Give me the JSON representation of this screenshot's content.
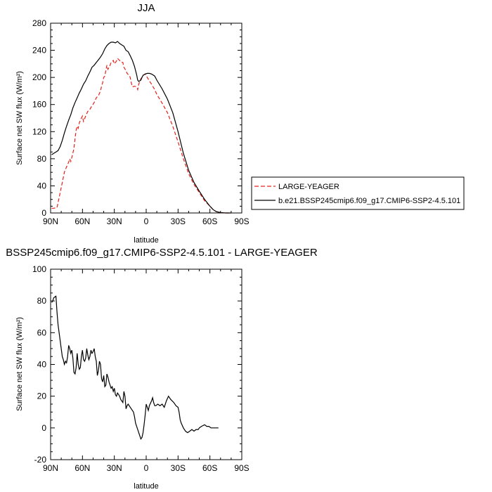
{
  "chart_data": [
    {
      "type": "line",
      "title": "JJA",
      "xlabel": "latitude",
      "ylabel": "Surface net SW flux (W/m²)",
      "xlim": [
        90,
        -90
      ],
      "ylim": [
        0,
        280
      ],
      "x_ticks": [
        90,
        60,
        30,
        0,
        -30,
        -60,
        -90
      ],
      "x_tick_labels": [
        "90N",
        "60N",
        "30N",
        "0",
        "30S",
        "60S",
        "90S"
      ],
      "y_ticks": [
        0,
        40,
        80,
        120,
        160,
        200,
        240,
        280
      ],
      "y_tick_labels": [
        "0",
        "40",
        "80",
        "120",
        "160",
        "200",
        "240",
        "280"
      ],
      "legend": "right-outside",
      "series": [
        {
          "name": "LARGE-YEAGER",
          "color": "#e8201a",
          "dash": "dashed",
          "points": [
            [
              89,
              7
            ],
            [
              87,
              7
            ],
            [
              84,
              8
            ],
            [
              83,
              15
            ],
            [
              81,
              30
            ],
            [
              79,
              45
            ],
            [
              77,
              60
            ],
            [
              75,
              68
            ],
            [
              73,
              75
            ],
            [
              72,
              80
            ],
            [
              71,
              76
            ],
            [
              70,
              82
            ],
            [
              68,
              95
            ],
            [
              67,
              110
            ],
            [
              66,
              122
            ],
            [
              65,
              128
            ],
            [
              64,
              125
            ],
            [
              63,
              133
            ],
            [
              61,
              140
            ],
            [
              60,
              143
            ],
            [
              59,
              135
            ],
            [
              57,
              143
            ],
            [
              55,
              150
            ],
            [
              53,
              153
            ],
            [
              51,
              158
            ],
            [
              49,
              163
            ],
            [
              47,
              170
            ],
            [
              45,
              173
            ],
            [
              43,
              180
            ],
            [
              42,
              187
            ],
            [
              41,
              192
            ],
            [
              40,
              200
            ],
            [
              39,
              202
            ],
            [
              38,
              210
            ],
            [
              37,
              218
            ],
            [
              36,
              212
            ],
            [
              34,
              218
            ],
            [
              33,
              222
            ],
            [
              31,
              225
            ],
            [
              30,
              220
            ],
            [
              28,
              224
            ],
            [
              27,
              228
            ],
            [
              25,
              225
            ],
            [
              24,
              223
            ],
            [
              22,
              222
            ],
            [
              21,
              215
            ],
            [
              19,
              210
            ],
            [
              18,
              206
            ],
            [
              16,
              203
            ],
            [
              15,
              200
            ],
            [
              14,
              192
            ],
            [
              13,
              186
            ],
            [
              11,
              187
            ],
            [
              9,
              186
            ],
            [
              8,
              182
            ],
            [
              7,
              190
            ],
            [
              5,
              198
            ],
            [
              4,
              200
            ],
            [
              3,
              203
            ],
            [
              1,
              205
            ],
            [
              0,
              203
            ],
            [
              -1,
              200
            ],
            [
              -3,
              195
            ],
            [
              -5,
              190
            ],
            [
              -8,
              182
            ],
            [
              -10,
              175
            ],
            [
              -15,
              162
            ],
            [
              -20,
              148
            ],
            [
              -25,
              128
            ],
            [
              -30,
              105
            ],
            [
              -35,
              80
            ],
            [
              -40,
              58
            ],
            [
              -45,
              42
            ],
            [
              -50,
              30
            ],
            [
              -55,
              18
            ],
            [
              -60,
              10
            ],
            [
              -63,
              5
            ],
            [
              -66,
              2
            ],
            [
              -70,
              0.5
            ],
            [
              -75,
              0
            ],
            [
              -80,
              0
            ]
          ]
        },
        {
          "name": "b.e21.BSSP245cmip6.f09_g17.CMIP6-SSP2-4.5.101",
          "color": "#000000",
          "dash": "solid",
          "points": [
            [
              89,
              86
            ],
            [
              87,
              88
            ],
            [
              85,
              90
            ],
            [
              83,
              92
            ],
            [
              81,
              98
            ],
            [
              79,
              107
            ],
            [
              77,
              118
            ],
            [
              75,
              128
            ],
            [
              73,
              137
            ],
            [
              71,
              145
            ],
            [
              69,
              155
            ],
            [
              67,
              163
            ],
            [
              65,
              170
            ],
            [
              63,
              177
            ],
            [
              61,
              183
            ],
            [
              59,
              190
            ],
            [
              57,
              195
            ],
            [
              55,
              202
            ],
            [
              53,
              208
            ],
            [
              51,
              215
            ],
            [
              49,
              218
            ],
            [
              47,
              222
            ],
            [
              45,
              226
            ],
            [
              43,
              230
            ],
            [
              41,
              235
            ],
            [
              39,
              242
            ],
            [
              37,
              247
            ],
            [
              35,
              250
            ],
            [
              33,
              252
            ],
            [
              31,
              252
            ],
            [
              29,
              251
            ],
            [
              27,
              253
            ],
            [
              25,
              250
            ],
            [
              23,
              248
            ],
            [
              21,
              246
            ],
            [
              19,
              240
            ],
            [
              17,
              238
            ],
            [
              15,
              232
            ],
            [
              13,
              225
            ],
            [
              11,
              216
            ],
            [
              10,
              210
            ],
            [
              9,
              204
            ],
            [
              8,
              196
            ],
            [
              7,
              194
            ],
            [
              6,
              195
            ],
            [
              5,
              196
            ],
            [
              4,
              200
            ],
            [
              3,
              203
            ],
            [
              1,
              205
            ],
            [
              -1,
              206
            ],
            [
              -3,
              206
            ],
            [
              -5,
              205
            ],
            [
              -8,
              202
            ],
            [
              -10,
              196
            ],
            [
              -15,
              183
            ],
            [
              -20,
              168
            ],
            [
              -25,
              148
            ],
            [
              -30,
              120
            ],
            [
              -35,
              88
            ],
            [
              -40,
              63
            ],
            [
              -45,
              45
            ],
            [
              -50,
              32
            ],
            [
              -55,
              20
            ],
            [
              -60,
              10
            ],
            [
              -63,
              5
            ],
            [
              -66,
              2
            ],
            [
              -70,
              0.5
            ],
            [
              -75,
              0
            ],
            [
              -80,
              0
            ]
          ]
        }
      ]
    },
    {
      "type": "line",
      "title": "BSSP245cmip6.f09_g17.CMIP6-SSP2-4.5.101 - LARGE-YEAGER",
      "xlabel": "latitude",
      "ylabel": "Surface net SW flux (W/m²)",
      "xlim": [
        90,
        -90
      ],
      "ylim": [
        -20,
        100
      ],
      "x_ticks": [
        90,
        60,
        30,
        0,
        -30,
        -60,
        -90
      ],
      "x_tick_labels": [
        "90N",
        "60N",
        "30N",
        "0",
        "30S",
        "60S",
        "90S"
      ],
      "y_ticks": [
        -20,
        0,
        20,
        40,
        60,
        80,
        100
      ],
      "y_tick_labels": [
        "-20",
        "0",
        "20",
        "40",
        "60",
        "80",
        "100"
      ],
      "series": [
        {
          "color": "#000000",
          "dash": "solid",
          "points": [
            [
              89,
              79
            ],
            [
              88,
              80
            ],
            [
              87,
              82
            ],
            [
              85,
              83
            ],
            [
              84,
              73
            ],
            [
              83,
              65
            ],
            [
              81,
              55
            ],
            [
              80,
              50
            ],
            [
              79,
              45
            ],
            [
              78,
              43
            ],
            [
              77,
              40
            ],
            [
              76,
              42
            ],
            [
              75,
              41
            ],
            [
              74,
              45
            ],
            [
              73,
              52
            ],
            [
              72,
              50
            ],
            [
              71,
              47
            ],
            [
              70,
              49
            ],
            [
              69,
              44
            ],
            [
              68,
              35
            ],
            [
              67,
              34
            ],
            [
              66,
              38
            ],
            [
              65,
              47
            ],
            [
              64,
              40
            ],
            [
              63,
              37
            ],
            [
              62,
              38
            ],
            [
              61,
              45
            ],
            [
              60,
              49
            ],
            [
              59,
              43
            ],
            [
              58,
              42
            ],
            [
              57,
              44
            ],
            [
              56,
              50
            ],
            [
              55,
              46
            ],
            [
              54,
              43
            ],
            [
              53,
              45
            ],
            [
              52,
              49
            ],
            [
              51,
              47
            ],
            [
              50,
              48
            ],
            [
              49,
              50
            ],
            [
              48,
              45
            ],
            [
              47,
              42
            ],
            [
              46,
              33
            ],
            [
              45,
              36
            ],
            [
              44,
              42
            ],
            [
              43,
              40
            ],
            [
              42,
              31
            ],
            [
              41,
              29
            ],
            [
              40,
              33
            ],
            [
              39,
              26
            ],
            [
              38,
              27
            ],
            [
              37,
              34
            ],
            [
              36,
              32
            ],
            [
              35,
              29
            ],
            [
              34,
              27
            ],
            [
              33,
              25
            ],
            [
              32,
              26
            ],
            [
              31,
              23
            ],
            [
              30,
              25
            ],
            [
              29,
              21
            ],
            [
              28,
              20
            ],
            [
              27,
              22
            ],
            [
              25,
              20
            ],
            [
              24,
              18
            ],
            [
              22,
              16
            ],
            [
              21,
              23
            ],
            [
              20,
              20
            ],
            [
              19,
              12
            ],
            [
              18,
              14
            ],
            [
              17,
              15
            ],
            [
              16,
              14
            ],
            [
              14,
              12
            ],
            [
              12,
              10
            ],
            [
              11,
              7
            ],
            [
              10,
              3
            ],
            [
              9,
              1
            ],
            [
              8,
              -1
            ],
            [
              7,
              -3
            ],
            [
              6,
              -5
            ],
            [
              5,
              -7
            ],
            [
              4,
              -6
            ],
            [
              3,
              -3
            ],
            [
              2,
              2
            ],
            [
              1,
              8
            ],
            [
              0,
              15
            ],
            [
              -1,
              13
            ],
            [
              -2,
              11
            ],
            [
              -3,
              14
            ],
            [
              -5,
              17
            ],
            [
              -6,
              19
            ],
            [
              -7,
              16
            ],
            [
              -8,
              14
            ],
            [
              -9,
              14
            ],
            [
              -11,
              15
            ],
            [
              -13,
              14
            ],
            [
              -15,
              15
            ],
            [
              -17,
              13
            ],
            [
              -19,
              17
            ],
            [
              -21,
              20
            ],
            [
              -23,
              18
            ],
            [
              -26,
              16
            ],
            [
              -28,
              14
            ],
            [
              -30,
              13
            ],
            [
              -31,
              10
            ],
            [
              -32,
              5
            ],
            [
              -33,
              3
            ],
            [
              -35,
              0
            ],
            [
              -37,
              -2
            ],
            [
              -39,
              -3
            ],
            [
              -41,
              -2
            ],
            [
              -43,
              -1
            ],
            [
              -45,
              -2
            ],
            [
              -47,
              -1
            ],
            [
              -49,
              -1
            ],
            [
              -50,
              0
            ],
            [
              -52,
              1
            ],
            [
              -55,
              2
            ],
            [
              -57,
              1
            ],
            [
              -59,
              1
            ],
            [
              -61,
              0
            ],
            [
              -64,
              0
            ],
            [
              -66,
              0
            ],
            [
              -68,
              0
            ]
          ]
        }
      ]
    }
  ]
}
